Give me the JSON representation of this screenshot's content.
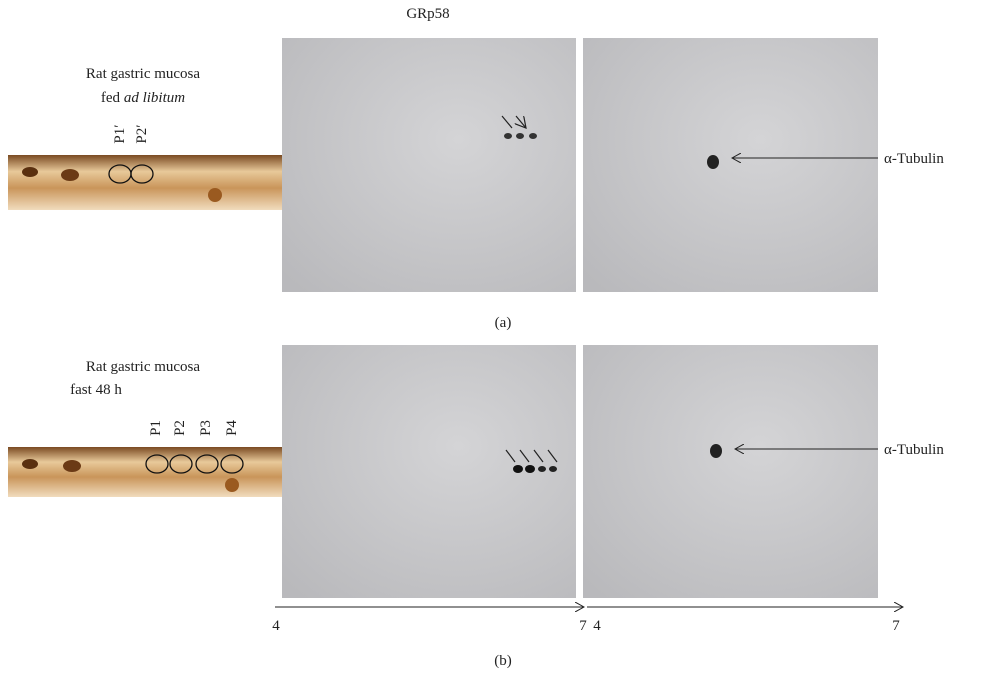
{
  "panel_a": {
    "title": "GRp58",
    "sample_label": {
      "line1": "Rat gastric mucosa",
      "line2_prefix": "fed",
      "line2_italic": "ad libitum"
    },
    "spot_labels": [
      "P1′",
      "P2′"
    ],
    "annotation": "α-Tubulin",
    "caption": "(a)"
  },
  "panel_b": {
    "sample_label": {
      "line1": "Rat gastric mucosa",
      "line2": "fast 48 h"
    },
    "spot_labels": [
      "P1",
      "P2",
      "P3",
      "P4"
    ],
    "annotation": "α-Tubulin",
    "axis_labels": [
      {
        "start": "4",
        "end": "7"
      },
      {
        "start": "4",
        "end": "7"
      }
    ],
    "caption": "(b)"
  }
}
